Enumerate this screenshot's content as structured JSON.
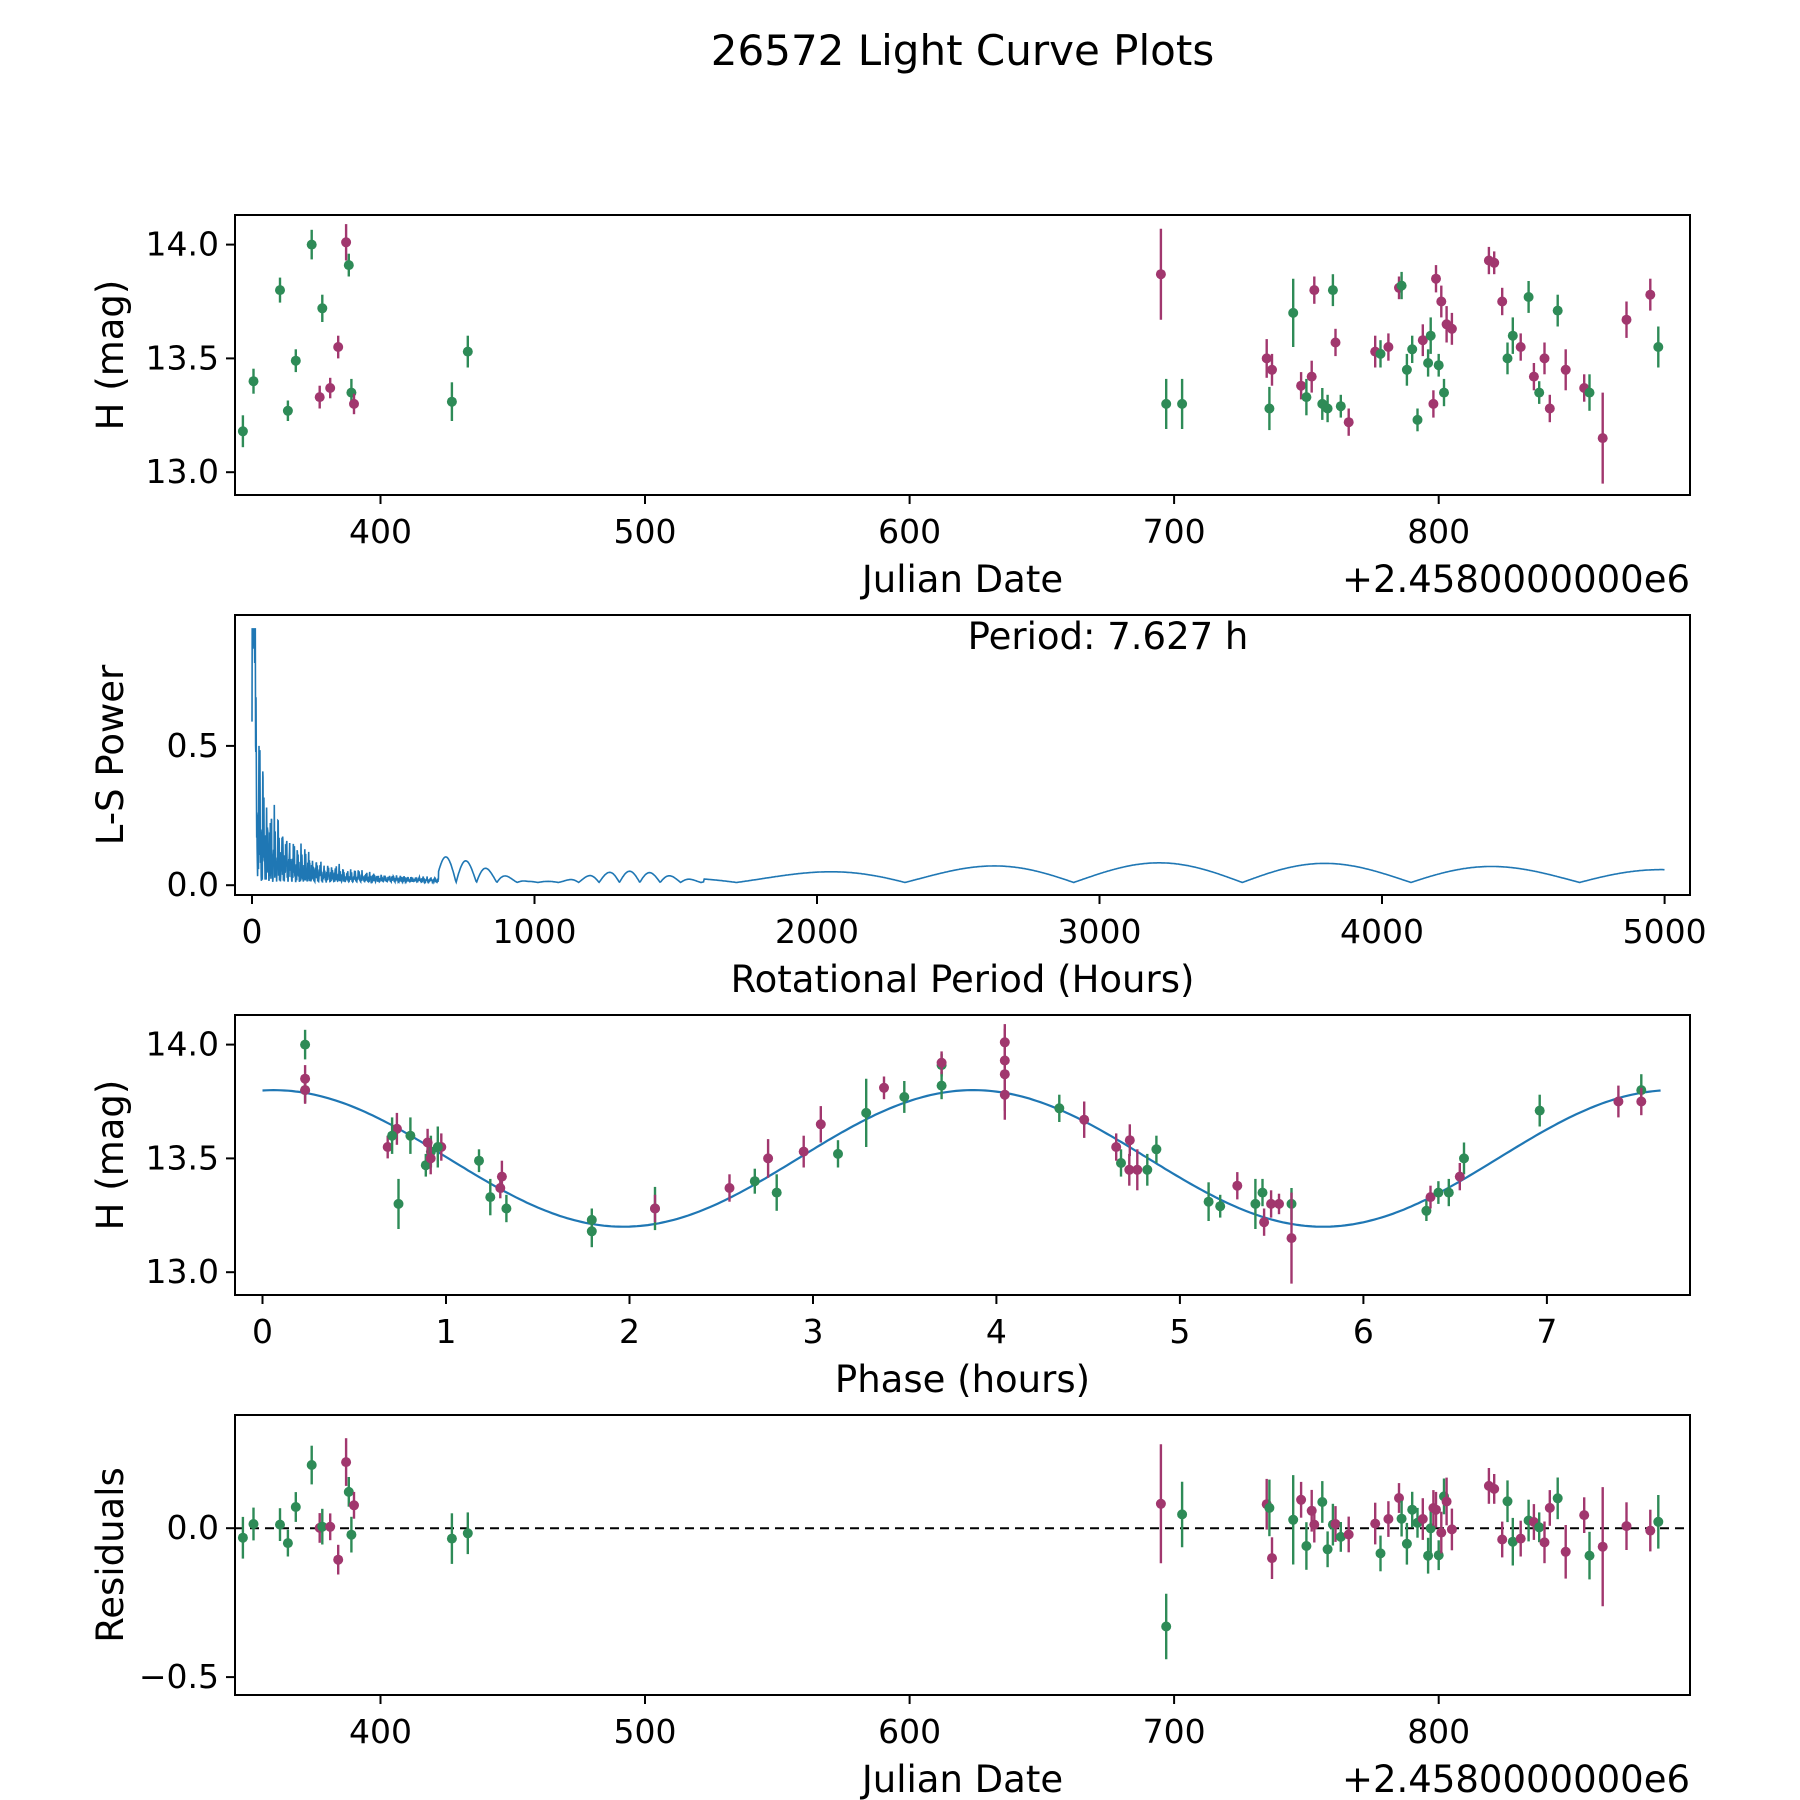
{
  "title": "26572 Light Curve Plots",
  "colors": {
    "green": "#2e8b57",
    "purple": "#a1376e",
    "line": "#1f77b4",
    "axis": "#000000"
  },
  "observations": [
    [
      348,
      13.18,
      0.07,
      "g"
    ],
    [
      352,
      13.4,
      0.055,
      "g"
    ],
    [
      362,
      13.8,
      0.055,
      "g"
    ],
    [
      365,
      13.27,
      0.045,
      "g"
    ],
    [
      368,
      13.49,
      0.05,
      "g"
    ],
    [
      374,
      14.0,
      0.065,
      "g"
    ],
    [
      377,
      13.33,
      0.05,
      "p"
    ],
    [
      378,
      13.72,
      0.06,
      "g"
    ],
    [
      381,
      13.37,
      0.045,
      "p"
    ],
    [
      384,
      13.55,
      0.05,
      "p"
    ],
    [
      387,
      14.01,
      0.08,
      "p"
    ],
    [
      388,
      13.91,
      0.05,
      "g"
    ],
    [
      389,
      13.35,
      0.06,
      "g"
    ],
    [
      390,
      13.3,
      0.045,
      "p"
    ],
    [
      427,
      13.31,
      0.085,
      "g"
    ],
    [
      433,
      13.53,
      0.07,
      "g"
    ],
    [
      695,
      13.87,
      0.2,
      "p"
    ],
    [
      697,
      13.3,
      0.11,
      "g",
      -0.33
    ],
    [
      703,
      13.3,
      0.11,
      "g"
    ],
    [
      735,
      13.5,
      0.085,
      "p"
    ],
    [
      736,
      13.28,
      0.095,
      "g"
    ],
    [
      737,
      13.45,
      0.07,
      "p"
    ],
    [
      745,
      13.7,
      0.15,
      "g"
    ],
    [
      748,
      13.38,
      0.06,
      "p"
    ],
    [
      750,
      13.33,
      0.08,
      "g"
    ],
    [
      752,
      13.42,
      0.07,
      "p"
    ],
    [
      753,
      13.8,
      0.06,
      "p"
    ],
    [
      756,
      13.3,
      0.07,
      "g"
    ],
    [
      758,
      13.28,
      0.06,
      "g"
    ],
    [
      760,
      13.8,
      0.07,
      "g"
    ],
    [
      761,
      13.57,
      0.06,
      "p"
    ],
    [
      763,
      13.29,
      0.05,
      "g"
    ],
    [
      766,
      13.22,
      0.06,
      "p"
    ],
    [
      776,
      13.53,
      0.07,
      "p"
    ],
    [
      778,
      13.52,
      0.06,
      "g"
    ],
    [
      781,
      13.55,
      0.06,
      "p"
    ],
    [
      785,
      13.81,
      0.05,
      "p"
    ],
    [
      786,
      13.82,
      0.06,
      "g"
    ],
    [
      788,
      13.45,
      0.07,
      "g"
    ],
    [
      790,
      13.54,
      0.06,
      "g"
    ],
    [
      792,
      13.23,
      0.05,
      "g"
    ],
    [
      794,
      13.58,
      0.07,
      "p"
    ],
    [
      796,
      13.48,
      0.06,
      "g"
    ],
    [
      797,
      13.6,
      0.08,
      "g"
    ],
    [
      798,
      13.3,
      0.06,
      "p"
    ],
    [
      799,
      13.85,
      0.06,
      "p"
    ],
    [
      800,
      13.47,
      0.05,
      "g"
    ],
    [
      801,
      13.75,
      0.07,
      "p"
    ],
    [
      802,
      13.35,
      0.06,
      "g"
    ],
    [
      803,
      13.65,
      0.08,
      "p"
    ],
    [
      805,
      13.63,
      0.07,
      "p"
    ],
    [
      819,
      13.93,
      0.06,
      "p"
    ],
    [
      821,
      13.92,
      0.05,
      "p"
    ],
    [
      824,
      13.75,
      0.06,
      "p"
    ],
    [
      826,
      13.5,
      0.07,
      "g"
    ],
    [
      828,
      13.6,
      0.08,
      "g"
    ],
    [
      831,
      13.55,
      0.06,
      "p"
    ],
    [
      834,
      13.77,
      0.07,
      "g"
    ],
    [
      836,
      13.42,
      0.06,
      "p"
    ],
    [
      838,
      13.35,
      0.05,
      "g"
    ],
    [
      840,
      13.5,
      0.07,
      "p"
    ],
    [
      842,
      13.28,
      0.06,
      "p"
    ],
    [
      845,
      13.71,
      0.07,
      "g"
    ],
    [
      848,
      13.45,
      0.09,
      "p"
    ],
    [
      855,
      13.37,
      0.06,
      "p"
    ],
    [
      857,
      13.35,
      0.08,
      "g"
    ],
    [
      862,
      13.15,
      0.2,
      "p"
    ],
    [
      871,
      13.67,
      0.08,
      "p"
    ],
    [
      880,
      13.78,
      0.07,
      "p"
    ],
    [
      883,
      13.55,
      0.09,
      "g"
    ]
  ],
  "chart_data": [
    {
      "type": "scatter",
      "name": "light-curve",
      "xlabel": "Julian Date",
      "ylabel": "H (mag)",
      "x_offset_label": "+2.4580000000e6",
      "xlim": [
        345,
        895
      ],
      "ylim": [
        12.9,
        14.13
      ],
      "xticks": [
        400,
        500,
        600,
        700,
        800
      ],
      "xtick_labels": [
        "400",
        "500",
        "600",
        "700",
        "800"
      ],
      "yticks": [
        13.0,
        13.5,
        14.0
      ],
      "ytick_labels": [
        "13.0",
        "13.5",
        "14.0"
      ],
      "series_note": "points are observations: [julian_date(+2458000), H_mag, error, color g=green p=purple]"
    },
    {
      "type": "line",
      "name": "periodogram",
      "xlabel": "Rotational Period (Hours)",
      "ylabel": "L-S Power",
      "annotation": "Period: 7.627 h",
      "peak_period_hours": 7.627,
      "peak_power": 0.92,
      "xlim": [
        -60,
        5090
      ],
      "ylim": [
        -0.035,
        0.97
      ],
      "xticks": [
        0,
        1000,
        2000,
        3000,
        4000,
        5000
      ],
      "xtick_labels": [
        "0",
        "1000",
        "2000",
        "3000",
        "4000",
        "5000"
      ],
      "yticks": [
        0.0,
        0.5
      ],
      "ytick_labels": [
        "0.0",
        "0.5"
      ]
    },
    {
      "type": "scatter",
      "name": "phased-light-curve",
      "xlabel": "Phase (hours)",
      "ylabel": "H (mag)",
      "xlim": [
        -0.15,
        7.78
      ],
      "ylim": [
        12.9,
        14.13
      ],
      "xticks": [
        0,
        1,
        2,
        3,
        4,
        5,
        6,
        7
      ],
      "xtick_labels": [
        "0",
        "1",
        "2",
        "3",
        "4",
        "5",
        "6",
        "7"
      ],
      "yticks": [
        13.0,
        13.5,
        14.0
      ],
      "ytick_labels": [
        "13.0",
        "13.5",
        "14.0"
      ],
      "fit": {
        "mean": 13.5,
        "amplitude": 0.3,
        "cos_period_hours": 3.8135,
        "phase_of_max": 0.06,
        "rotation_period_hours": 7.627
      }
    },
    {
      "type": "scatter",
      "name": "residuals",
      "xlabel": "Julian Date",
      "ylabel": "Residuals",
      "x_offset_label": "+2.4580000000e6",
      "xlim": [
        345,
        895
      ],
      "ylim": [
        -0.56,
        0.38
      ],
      "xticks": [
        400,
        500,
        600,
        700,
        800
      ],
      "xtick_labels": [
        "400",
        "500",
        "600",
        "700",
        "800"
      ],
      "yticks": [
        -0.5,
        0.0
      ],
      "ytick_labels": [
        "−0.5",
        "0.0"
      ],
      "zero_line": true
    }
  ]
}
